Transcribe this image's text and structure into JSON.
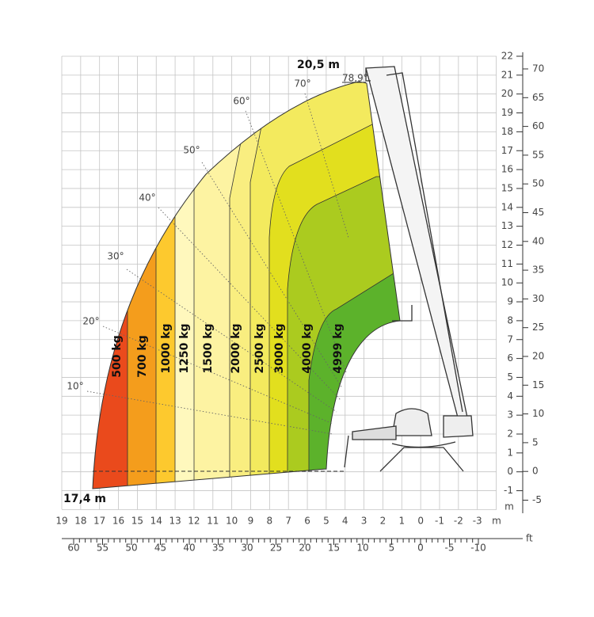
{
  "height_label": "20,5 m",
  "reach_label": "17,4 m",
  "max_angle": "78,9°",
  "angles": [
    "10°",
    "20°",
    "30°",
    "40°",
    "50°",
    "60°",
    "70°"
  ],
  "zones": [
    "500 kg",
    "700 kg",
    "1000 kg",
    "1250 kg",
    "1500 kg",
    "2000 kg",
    "2500 kg",
    "3000 kg",
    "4000 kg",
    "4999 kg"
  ],
  "bottom_m": [
    "19",
    "18",
    "17",
    "16",
    "15",
    "14",
    "13",
    "12",
    "11",
    "10",
    "9",
    "8",
    "7",
    "6",
    "5",
    "4",
    "3",
    "2",
    "1",
    "0",
    "-1",
    "-2",
    "-3"
  ],
  "bottom_m_unit": "m",
  "bottom_ft": [
    "60",
    "55",
    "50",
    "45",
    "40",
    "35",
    "30",
    "25",
    "20",
    "15",
    "10",
    "5",
    "0",
    "-5",
    "-10"
  ],
  "bottom_ft_unit": "ft",
  "right_m": [
    "22",
    "21",
    "20",
    "19",
    "18",
    "17",
    "16",
    "15",
    "14",
    "13",
    "12",
    "11",
    "10",
    "9",
    "8",
    "7",
    "6",
    "5",
    "4",
    "3",
    "2",
    "1",
    "0",
    "-1"
  ],
  "right_m_unit": "m",
  "right_ft": [
    "70",
    "65",
    "60",
    "55",
    "50",
    "45",
    "40",
    "35",
    "30",
    "25",
    "20",
    "15",
    "10",
    "5",
    "0",
    "-5"
  ]
}
